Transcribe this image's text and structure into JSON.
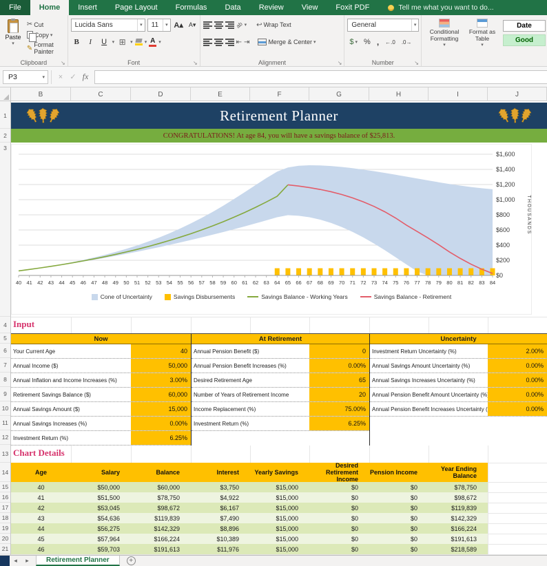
{
  "window": {
    "tell_me": "Tell me what you want to do..."
  },
  "ribbon": {
    "tabs": [
      {
        "label": "File",
        "active": false
      },
      {
        "label": "Home",
        "active": true
      },
      {
        "label": "Insert",
        "active": false
      },
      {
        "label": "Page Layout",
        "active": false
      },
      {
        "label": "Formulas",
        "active": false
      },
      {
        "label": "Data",
        "active": false
      },
      {
        "label": "Review",
        "active": false
      },
      {
        "label": "View",
        "active": false
      },
      {
        "label": "Foxit PDF",
        "active": false
      }
    ],
    "clipboard": {
      "group_label": "Clipboard",
      "paste": "Paste",
      "cut": "Cut",
      "copy": "Copy",
      "format_painter": "Format Painter"
    },
    "font": {
      "group_label": "Font",
      "font_name": "Lucida Sans",
      "font_size": "11",
      "bold": "B",
      "italic": "I",
      "underline": "U"
    },
    "alignment": {
      "group_label": "Alignment",
      "wrap_text": "Wrap Text",
      "merge_center": "Merge & Center",
      "orientation": "ab"
    },
    "number": {
      "group_label": "Number",
      "format": "General",
      "currency": "$",
      "percent": "%",
      "comma": ",",
      "increase_decimal": "←.0",
      "decrease_decimal": ".0→"
    },
    "styles": {
      "conditional_formatting": "Conditional Formatting",
      "format_as_table": "Format as Table",
      "cell_styles": [
        "Date",
        "Good"
      ]
    }
  },
  "icons": {
    "cut": "✂",
    "format_painter": "✎",
    "wrap_text": "↩",
    "borders": "⊞",
    "indent_decrease": "⇤",
    "indent_increase": "⇥",
    "cancel": "×",
    "confirm": "✓",
    "dropdown": "▾",
    "dialog_launcher": "↘",
    "prev_sheet": "◂",
    "next_sheet": "▸",
    "add_sheet": "+",
    "increase_font": "A▴",
    "decrease_font": "A▾"
  },
  "formula_bar": {
    "name_box": "P3",
    "fx_label": "fx"
  },
  "grid": {
    "columns": [
      "B",
      "C",
      "D",
      "E",
      "F",
      "G",
      "H",
      "I",
      "J"
    ],
    "row_numbers": [
      "1",
      "2",
      "3",
      "4",
      "5",
      "6",
      "7",
      "8",
      "9",
      "10",
      "11",
      "12",
      "13",
      "14",
      "15",
      "16",
      "17",
      "18",
      "19",
      "20",
      "21"
    ]
  },
  "sheet": {
    "title": "Retirement Planner",
    "congrats": "CONGRATULATIONS!  At age  84,  you will have a savings balance of  $25,813.",
    "input_heading": "Input",
    "chart_details_heading": "Chart Details",
    "tab_name": "Retirement Planner"
  },
  "input_table": {
    "headers": [
      "Now",
      "At Retirement",
      "Uncertainty"
    ],
    "groups": [
      {
        "rows": [
          [
            "Your Current Age",
            "40"
          ],
          [
            "Annual Income ($)",
            "50,000"
          ],
          [
            "Annual Inflation and Income Increases (%)",
            "3.00%"
          ],
          [
            "Retirement Savings Balance ($)",
            "60,000"
          ],
          [
            "Annual Savings Amount ($)",
            "15,000"
          ],
          [
            "Annual Savings Increases (%)",
            "0.00%"
          ],
          [
            "Investment Return (%)",
            "6.25%"
          ]
        ]
      },
      {
        "rows": [
          [
            "Annual Pension Benefit ($)",
            "0"
          ],
          [
            "Annual Pension Benefit Increases (%)",
            "0.00%"
          ],
          [
            "Desired Retirement Age",
            "65"
          ],
          [
            "Number of Years of Retirement Income",
            "20"
          ],
          [
            "Income Replacement (%)",
            "75.00%"
          ],
          [
            "Investment Return (%)",
            "6.25%"
          ],
          [
            "",
            ""
          ]
        ]
      },
      {
        "rows": [
          [
            "Investment Return Uncertainty (%)",
            "2.00%"
          ],
          [
            "Annual Savings Amount Uncertainty (%)",
            "0.00%"
          ],
          [
            "Annual Savings Increases Uncertainty (%)",
            "0.00%"
          ],
          [
            "Annual Pension Benefit Amount Uncertainty (%)",
            "0.00%"
          ],
          [
            "Annual Pension Benefit Increases Uncertainty (%)",
            "0.00%"
          ],
          [
            "",
            ""
          ],
          [
            "",
            ""
          ]
        ]
      }
    ]
  },
  "details_table": {
    "headers": [
      "Age",
      "Salary",
      "Balance",
      "Interest",
      "Yearly Savings",
      "Desired\nRetirement Income",
      "Pension Income",
      "Year Ending\nBalance"
    ],
    "rows": [
      [
        "40",
        "$50,000",
        "$60,000",
        "$3,750",
        "$15,000",
        "$0",
        "$0",
        "$78,750"
      ],
      [
        "41",
        "$51,500",
        "$78,750",
        "$4,922",
        "$15,000",
        "$0",
        "$0",
        "$98,672"
      ],
      [
        "42",
        "$53,045",
        "$98,672",
        "$6,167",
        "$15,000",
        "$0",
        "$0",
        "$119,839"
      ],
      [
        "43",
        "$54,636",
        "$119,839",
        "$7,490",
        "$15,000",
        "$0",
        "$0",
        "$142,329"
      ],
      [
        "44",
        "$56,275",
        "$142,329",
        "$8,896",
        "$15,000",
        "$0",
        "$0",
        "$166,224"
      ],
      [
        "45",
        "$57,964",
        "$166,224",
        "$10,389",
        "$15,000",
        "$0",
        "$0",
        "$191,613"
      ],
      [
        "46",
        "$59,703",
        "$191,613",
        "$11,976",
        "$15,000",
        "$0",
        "$0",
        "$218,589"
      ]
    ]
  },
  "chart_data": {
    "type": "area+line+bar",
    "ylabel": "THOUSANDS",
    "ylim": [
      0,
      1600
    ],
    "ytick_step": 200,
    "grid": true,
    "legend_position": "bottom",
    "x": [
      40,
      41,
      42,
      43,
      44,
      45,
      46,
      47,
      48,
      49,
      50,
      51,
      52,
      53,
      54,
      55,
      56,
      57,
      58,
      59,
      60,
      61,
      62,
      63,
      64,
      65,
      66,
      67,
      68,
      69,
      70,
      71,
      72,
      73,
      74,
      75,
      76,
      77,
      78,
      79,
      80,
      81,
      82,
      83,
      84
    ],
    "series": [
      {
        "name": "Cone of Uncertainty",
        "type": "band",
        "color": "#c8d8ec",
        "upper": [
          60,
          80,
          101,
          124,
          149,
          176,
          205,
          237,
          272,
          310,
          351,
          396,
          445,
          498,
          556,
          619,
          687,
          760,
          838,
          921,
          1009,
          1100,
          1193,
          1285,
          1370,
          1425,
          1448,
          1455,
          1452,
          1444,
          1432,
          1416,
          1397,
          1376,
          1353,
          1329,
          1304,
          1279,
          1254,
          1230,
          1207,
          1186,
          1167,
          1151,
          1138
        ],
        "lower": [
          60,
          78,
          97,
          117,
          138,
          160,
          183,
          207,
          232,
          258,
          285,
          313,
          342,
          372,
          403,
          435,
          468,
          502,
          537,
          573,
          610,
          648,
          687,
          727,
          768,
          795,
          788,
          768,
          736,
          693,
          639,
          575,
          502,
          421,
          333,
          240,
          145,
          52,
          0,
          0,
          0,
          0,
          0,
          0,
          0
        ]
      },
      {
        "name": "Savings Disbursements",
        "type": "bar",
        "color": "#ffc000",
        "values": [
          0,
          0,
          0,
          0,
          0,
          0,
          0,
          0,
          0,
          0,
          0,
          0,
          0,
          0,
          0,
          0,
          0,
          0,
          0,
          0,
          0,
          0,
          0,
          0,
          95,
          95,
          95,
          95,
          95,
          95,
          95,
          95,
          95,
          95,
          95,
          95,
          95,
          95,
          95,
          95,
          95,
          95,
          95,
          95,
          95
        ]
      },
      {
        "name": "Savings Balance - Working Years",
        "type": "line",
        "color": "#85a93e",
        "values": [
          60,
          79,
          99,
          120,
          142,
          166,
          192,
          219,
          247,
          278,
          310,
          344,
          381,
          420,
          461,
          505,
          551,
          601,
          653,
          709,
          769,
          832,
          899,
          970,
          1045,
          1196,
          null,
          null,
          null,
          null,
          null,
          null,
          null,
          null,
          null,
          null,
          null,
          null,
          null,
          null,
          null,
          null,
          null,
          null,
          null
        ]
      },
      {
        "name": "Savings Balance - Retirement",
        "type": "line",
        "color": "#e35d6a",
        "values": [
          null,
          null,
          null,
          null,
          null,
          null,
          null,
          null,
          null,
          null,
          null,
          null,
          null,
          null,
          null,
          null,
          null,
          null,
          null,
          null,
          null,
          null,
          null,
          null,
          null,
          1196,
          1180,
          1160,
          1135,
          1105,
          1068,
          1024,
          972,
          911,
          840,
          758,
          664,
          580,
          495,
          405,
          310,
          225,
          148,
          82,
          26
        ]
      }
    ]
  },
  "colors": {
    "accent_green": "#217346",
    "banner_navy": "#1e4164",
    "banner_green": "#76ad3f",
    "gold": "#ffc000",
    "heading_pink": "#d6336c",
    "good_bg": "#c6efce",
    "good_text": "#006100"
  }
}
